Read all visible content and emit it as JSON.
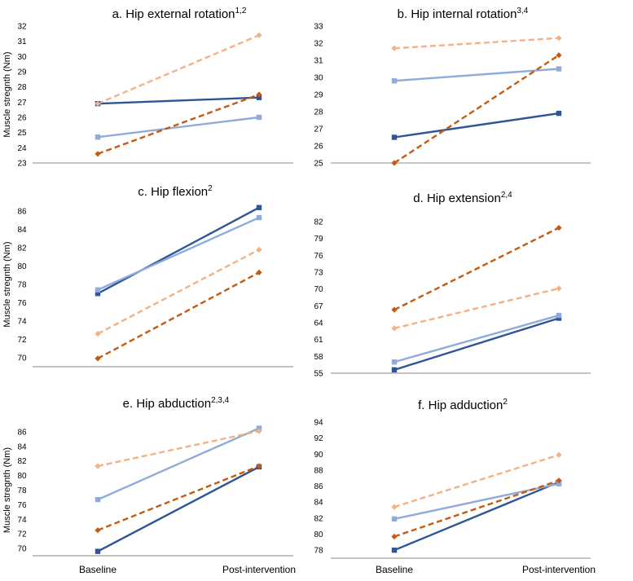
{
  "colors": {
    "dark_blue": "#2e5596",
    "light_blue": "#8fabdc",
    "dark_orange": "#c55a11",
    "light_orange": "#f4b183",
    "axis": "#000000",
    "text": "#000000"
  },
  "shared": {
    "ylabel": "Muscle stregnth (Nm)",
    "categories": [
      "Baseline",
      "Post-intervention"
    ]
  },
  "chart_data": [
    {
      "type": "line",
      "title": "Hip external rotation",
      "title_prefix": "a.",
      "title_sup": "1,2",
      "ylabel": "Muscle stregnth (Nm)",
      "categories": [
        "Baseline",
        "Post-intervention"
      ],
      "ylim": [
        23,
        32
      ],
      "yticks": [
        23,
        24,
        25,
        26,
        27,
        28,
        29,
        30,
        31,
        32
      ],
      "series": [
        {
          "name": "series-1",
          "style": "solid",
          "color": "dark_blue",
          "marker": "square",
          "values": [
            26.9,
            27.3
          ]
        },
        {
          "name": "series-2",
          "style": "solid",
          "color": "light_blue",
          "marker": "square",
          "values": [
            24.7,
            26.0
          ]
        },
        {
          "name": "series-3",
          "style": "dashed",
          "color": "dark_orange",
          "marker": "diamond",
          "values": [
            23.6,
            27.5
          ]
        },
        {
          "name": "series-4",
          "style": "dashed",
          "color": "light_orange",
          "marker": "diamond",
          "values": [
            26.9,
            31.4
          ]
        }
      ]
    },
    {
      "type": "line",
      "title": "Hip internal rotation",
      "title_prefix": "b.",
      "title_sup": "3,4",
      "ylabel": "",
      "categories": [
        "Baseline",
        "Post-intervention"
      ],
      "ylim": [
        25,
        33
      ],
      "yticks": [
        25,
        26,
        27,
        28,
        29,
        30,
        31,
        32,
        33
      ],
      "series": [
        {
          "name": "series-1",
          "style": "solid",
          "color": "dark_blue",
          "marker": "square",
          "values": [
            26.5,
            27.9
          ]
        },
        {
          "name": "series-2",
          "style": "solid",
          "color": "light_blue",
          "marker": "square",
          "values": [
            29.8,
            30.5
          ]
        },
        {
          "name": "series-3",
          "style": "dashed",
          "color": "dark_orange",
          "marker": "diamond",
          "values": [
            25.0,
            31.3
          ]
        },
        {
          "name": "series-4",
          "style": "dashed",
          "color": "light_orange",
          "marker": "diamond",
          "values": [
            31.7,
            32.3
          ]
        }
      ]
    },
    {
      "type": "line",
      "title": "Hip flexion",
      "title_prefix": "c.",
      "title_sup": "2",
      "ylabel": "Muscle stregnth (Nm)",
      "categories": [
        "Baseline",
        "Post-intervention"
      ],
      "ylim": [
        69,
        87
      ],
      "yticks": [
        70,
        72,
        74,
        76,
        78,
        80,
        82,
        84,
        86
      ],
      "series": [
        {
          "name": "series-1",
          "style": "solid",
          "color": "dark_blue",
          "marker": "square",
          "values": [
            77.0,
            86.4
          ]
        },
        {
          "name": "series-2",
          "style": "solid",
          "color": "light_blue",
          "marker": "square",
          "values": [
            77.4,
            85.3
          ]
        },
        {
          "name": "series-3",
          "style": "dashed",
          "color": "dark_orange",
          "marker": "diamond",
          "values": [
            69.9,
            79.3
          ]
        },
        {
          "name": "series-4",
          "style": "dashed",
          "color": "light_orange",
          "marker": "diamond",
          "values": [
            72.6,
            81.8
          ]
        }
      ]
    },
    {
      "type": "line",
      "title": "Hip extension",
      "title_prefix": "d.",
      "title_sup": "2,4",
      "ylabel": "",
      "categories": [
        "Baseline",
        "Post-intervention"
      ],
      "ylim": [
        55,
        82
      ],
      "yticks": [
        55,
        58,
        61,
        64,
        67,
        70,
        73,
        76,
        79,
        82
      ],
      "series": [
        {
          "name": "series-1",
          "style": "solid",
          "color": "dark_blue",
          "marker": "square",
          "values": [
            55.6,
            64.8
          ]
        },
        {
          "name": "series-2",
          "style": "solid",
          "color": "light_blue",
          "marker": "square",
          "values": [
            57.0,
            65.3
          ]
        },
        {
          "name": "series-3",
          "style": "dashed",
          "color": "dark_orange",
          "marker": "diamond",
          "values": [
            66.3,
            80.9
          ]
        },
        {
          "name": "series-4",
          "style": "dashed",
          "color": "light_orange",
          "marker": "diamond",
          "values": [
            63.0,
            70.1
          ]
        }
      ]
    },
    {
      "type": "line",
      "title": "Hip abduction",
      "title_prefix": "e.",
      "title_sup": "2,3,4",
      "ylabel": "Muscle stregnth (Nm)",
      "categories": [
        "Baseline",
        "Post-intervention"
      ],
      "ylim": [
        69,
        87
      ],
      "yticks": [
        70,
        72,
        74,
        76,
        78,
        80,
        82,
        84,
        86
      ],
      "series": [
        {
          "name": "series-1",
          "style": "solid",
          "color": "dark_blue",
          "marker": "square",
          "values": [
            69.6,
            81.2
          ]
        },
        {
          "name": "series-2",
          "style": "solid",
          "color": "light_blue",
          "marker": "square",
          "values": [
            76.7,
            86.5
          ]
        },
        {
          "name": "series-3",
          "style": "dashed",
          "color": "dark_orange",
          "marker": "diamond",
          "values": [
            72.5,
            81.3
          ]
        },
        {
          "name": "series-4",
          "style": "dashed",
          "color": "light_orange",
          "marker": "diamond",
          "values": [
            81.3,
            86.1
          ]
        }
      ]
    },
    {
      "type": "line",
      "title": "Hip adduction",
      "title_prefix": "f.",
      "title_sup": "2",
      "ylabel": "",
      "categories": [
        "Baseline",
        "Post-intervention"
      ],
      "ylim": [
        77,
        94
      ],
      "yticks": [
        78,
        80,
        82,
        84,
        86,
        88,
        90,
        92,
        94
      ],
      "series": [
        {
          "name": "series-1",
          "style": "solid",
          "color": "dark_blue",
          "marker": "square",
          "values": [
            78.0,
            86.5
          ]
        },
        {
          "name": "series-2",
          "style": "solid",
          "color": "light_blue",
          "marker": "square",
          "values": [
            81.9,
            86.3
          ]
        },
        {
          "name": "series-3",
          "style": "dashed",
          "color": "dark_orange",
          "marker": "diamond",
          "values": [
            79.7,
            86.7
          ]
        },
        {
          "name": "series-4",
          "style": "dashed",
          "color": "light_orange",
          "marker": "diamond",
          "values": [
            83.4,
            89.9
          ]
        }
      ]
    }
  ]
}
